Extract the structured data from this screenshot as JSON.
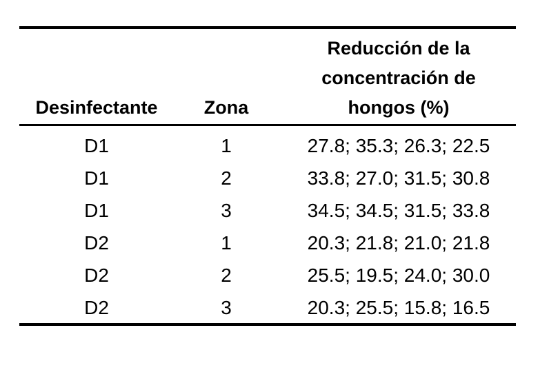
{
  "table": {
    "header": [
      "Desinfectante",
      "Zona",
      "Reducción de la concentración de hongos (%)"
    ],
    "rows": [
      [
        "D1",
        "1",
        "27.8; 35.3; 26.3; 22.5"
      ],
      [
        "D1",
        "2",
        "33.8; 27.0; 31.5; 30.8"
      ],
      [
        "D1",
        "3",
        "34.5; 34.5; 31.5; 33.8"
      ],
      [
        "D2",
        "1",
        "20.3; 21.8; 21.0; 21.8"
      ],
      [
        "D2",
        "2",
        "25.5; 19.5; 24.0; 30.0"
      ],
      [
        "D2",
        "3",
        "20.3; 25.5; 15.8; 16.5"
      ]
    ]
  }
}
